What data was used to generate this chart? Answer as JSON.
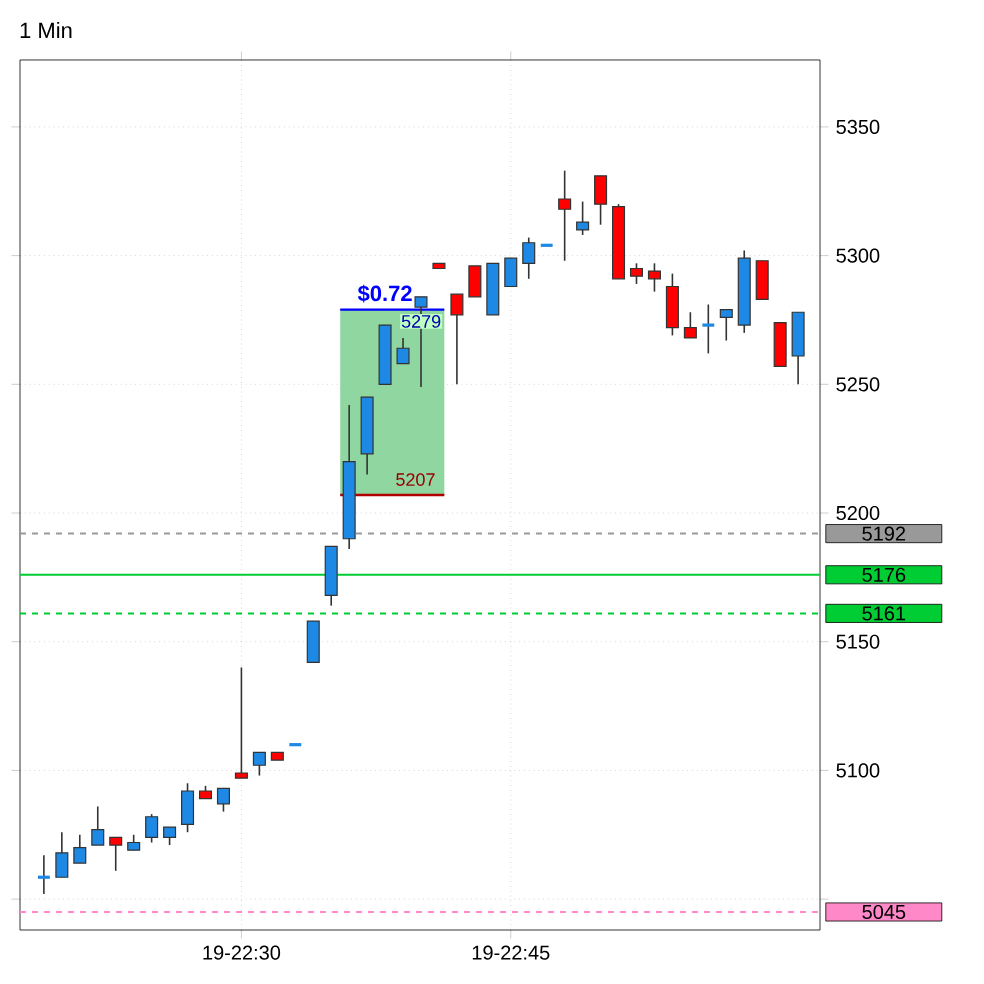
{
  "chart_data": {
    "type": "candlestick",
    "title": "1 Min",
    "categories": [
      null,
      null,
      null,
      null,
      null,
      null,
      null,
      null,
      null,
      null,
      null,
      "19-22:30",
      null,
      null,
      null,
      null,
      null,
      null,
      null,
      null,
      null,
      null,
      null,
      null,
      null,
      null,
      "19-22:45",
      null,
      null,
      null,
      null,
      null,
      null,
      null,
      null,
      null,
      null,
      null,
      null,
      null,
      null,
      null,
      null
    ],
    "ohlc": [
      [
        5058.5,
        5067,
        5052,
        5058.5
      ],
      [
        5058.5,
        5076,
        5058.5,
        5068
      ],
      [
        5064,
        5075,
        5064,
        5070
      ],
      [
        5071,
        5086,
        5071,
        5077
      ],
      [
        5074,
        5074,
        5061,
        5071
      ],
      [
        5069,
        5075,
        5069,
        5072
      ],
      [
        5074,
        5083,
        5072,
        5082
      ],
      [
        5074,
        5078,
        5071,
        5078
      ],
      [
        5079,
        5095,
        5076,
        5092
      ],
      [
        5092,
        5094,
        5089,
        5089
      ],
      [
        5087,
        5093,
        5084,
        5093
      ],
      [
        5099,
        5140,
        5097,
        5097
      ],
      [
        5102,
        5107,
        5098,
        5107
      ],
      [
        5107,
        5107,
        5104,
        5104
      ],
      [
        5110,
        5110,
        5110,
        5110
      ],
      [
        5142,
        5158,
        5142,
        5158
      ],
      [
        5168,
        5187,
        5164,
        5187
      ],
      [
        5190,
        5242,
        5186,
        5220
      ],
      [
        5223,
        5245,
        5215,
        5245
      ],
      [
        5250,
        5273,
        5250,
        5273
      ],
      [
        5258,
        5268,
        5258,
        5264
      ],
      [
        5280,
        5284,
        5249,
        5284
      ],
      [
        5297,
        5297,
        5295,
        5295
      ],
      [
        5285,
        5285,
        5250,
        5277
      ],
      [
        5296,
        5296,
        5284,
        5284
      ],
      [
        5277,
        5297,
        5277,
        5297
      ],
      [
        5288,
        5299,
        5288,
        5299
      ],
      [
        5297,
        5307,
        5291,
        5305
      ],
      [
        5304,
        5304,
        5304,
        5304
      ],
      [
        5322,
        5333,
        5298,
        5318
      ],
      [
        5310,
        5321,
        5308,
        5313
      ],
      [
        5331,
        5331,
        5312,
        5320
      ],
      [
        5319,
        5320,
        5291,
        5291
      ],
      [
        5295,
        5297,
        5289,
        5292
      ],
      [
        5294,
        5297,
        5286,
        5291
      ],
      [
        5288,
        5293,
        5269,
        5272
      ],
      [
        5272,
        5278,
        5268,
        5268
      ],
      [
        5273,
        5281,
        5262,
        5273
      ],
      [
        5276,
        5279,
        5267,
        5279
      ],
      [
        5273,
        5302,
        5270,
        5299
      ],
      [
        5298,
        5298,
        5283,
        5283
      ],
      [
        5274,
        5274,
        5257,
        5257
      ],
      [
        5261,
        5278,
        5250,
        5278
      ]
    ],
    "colors": [
      "#1e88e5",
      "#1e88e5",
      "#1e88e5",
      "#1e88e5",
      "#ff0000",
      "#1e88e5",
      "#1e88e5",
      "#1e88e5",
      "#1e88e5",
      "#ff0000",
      "#1e88e5",
      "#ff0000",
      "#1e88e5",
      "#ff0000",
      "#1e88e5",
      "#1e88e5",
      "#1e88e5",
      "#1e88e5",
      "#1e88e5",
      "#1e88e5",
      "#1e88e5",
      "#1e88e5",
      "#ff0000",
      "#ff0000",
      "#ff0000",
      "#1e88e5",
      "#1e88e5",
      "#1e88e5",
      "#1e88e5",
      "#ff0000",
      "#1e88e5",
      "#ff0000",
      "#ff0000",
      "#ff0000",
      "#ff0000",
      "#ff0000",
      "#ff0000",
      "#1e88e5",
      "#1e88e5",
      "#1e88e5",
      "#ff0000",
      "#ff0000",
      "#1e88e5"
    ],
    "ylim": [
      5038,
      5376
    ],
    "yticks": [
      {
        "value": 5050,
        "label": null
      },
      5100,
      5150,
      5200,
      5250,
      5300,
      5350
    ],
    "grid": true,
    "ref_lines": [
      {
        "axis": "y",
        "value": 5192,
        "label": "5192",
        "color": "#999999",
        "line_style": "dashed"
      },
      {
        "axis": "y",
        "value": 5176,
        "label": "5176",
        "color": "#00cc33",
        "line_style": "solid"
      },
      {
        "axis": "y",
        "value": 5161,
        "label": "5161",
        "color": "#00cc33",
        "line_style": "dashed"
      },
      {
        "axis": "y",
        "value": 5045,
        "label": "5045",
        "color": "#ff88c8",
        "line_style": "dashed"
      }
    ],
    "bands": [
      {
        "axis": "y",
        "from": 5207,
        "to": 5279,
        "label": "$0.72",
        "color": "#8fd6a0"
      }
    ],
    "annotations": [
      {
        "text": "5279",
        "y": 5279
      },
      {
        "text": "5207",
        "y": 5207
      }
    ]
  }
}
